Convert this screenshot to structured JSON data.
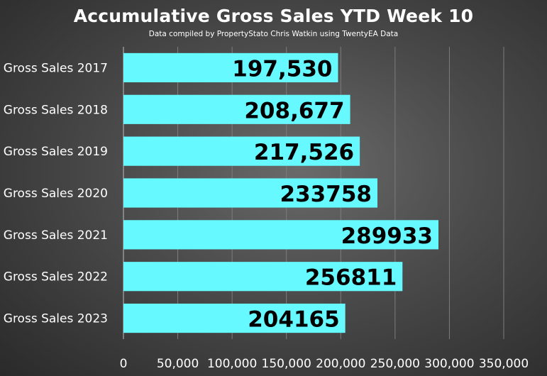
{
  "chart_data": {
    "type": "bar",
    "orientation": "horizontal",
    "title": "Accumulative Gross Sales YTD Week 10",
    "subtitle": "Data compiled by PropertyStato Chris Watkin using TwentyEA Data",
    "categories": [
      "Gross Sales 2017",
      "Gross Sales 2018",
      "Gross Sales 2019",
      "Gross Sales 2020",
      "Gross Sales 2021",
      "Gross Sales 2022",
      "Gross Sales 2023"
    ],
    "values": [
      197530,
      208677,
      217526,
      233758,
      289933,
      256811,
      204165
    ],
    "data_labels": [
      "197,530",
      "208,677",
      "217,526",
      "233758",
      "289933",
      "256811",
      "204165"
    ],
    "xticks": [
      "0",
      "50,000",
      "100,000",
      "150,000",
      "200,000",
      "250,000",
      "300,000",
      "350,000"
    ],
    "xlim": [
      0,
      350000
    ],
    "grid": true,
    "bar_color": "#66f9ff",
    "text_color": "#ffffff",
    "label_color": "#000000"
  }
}
